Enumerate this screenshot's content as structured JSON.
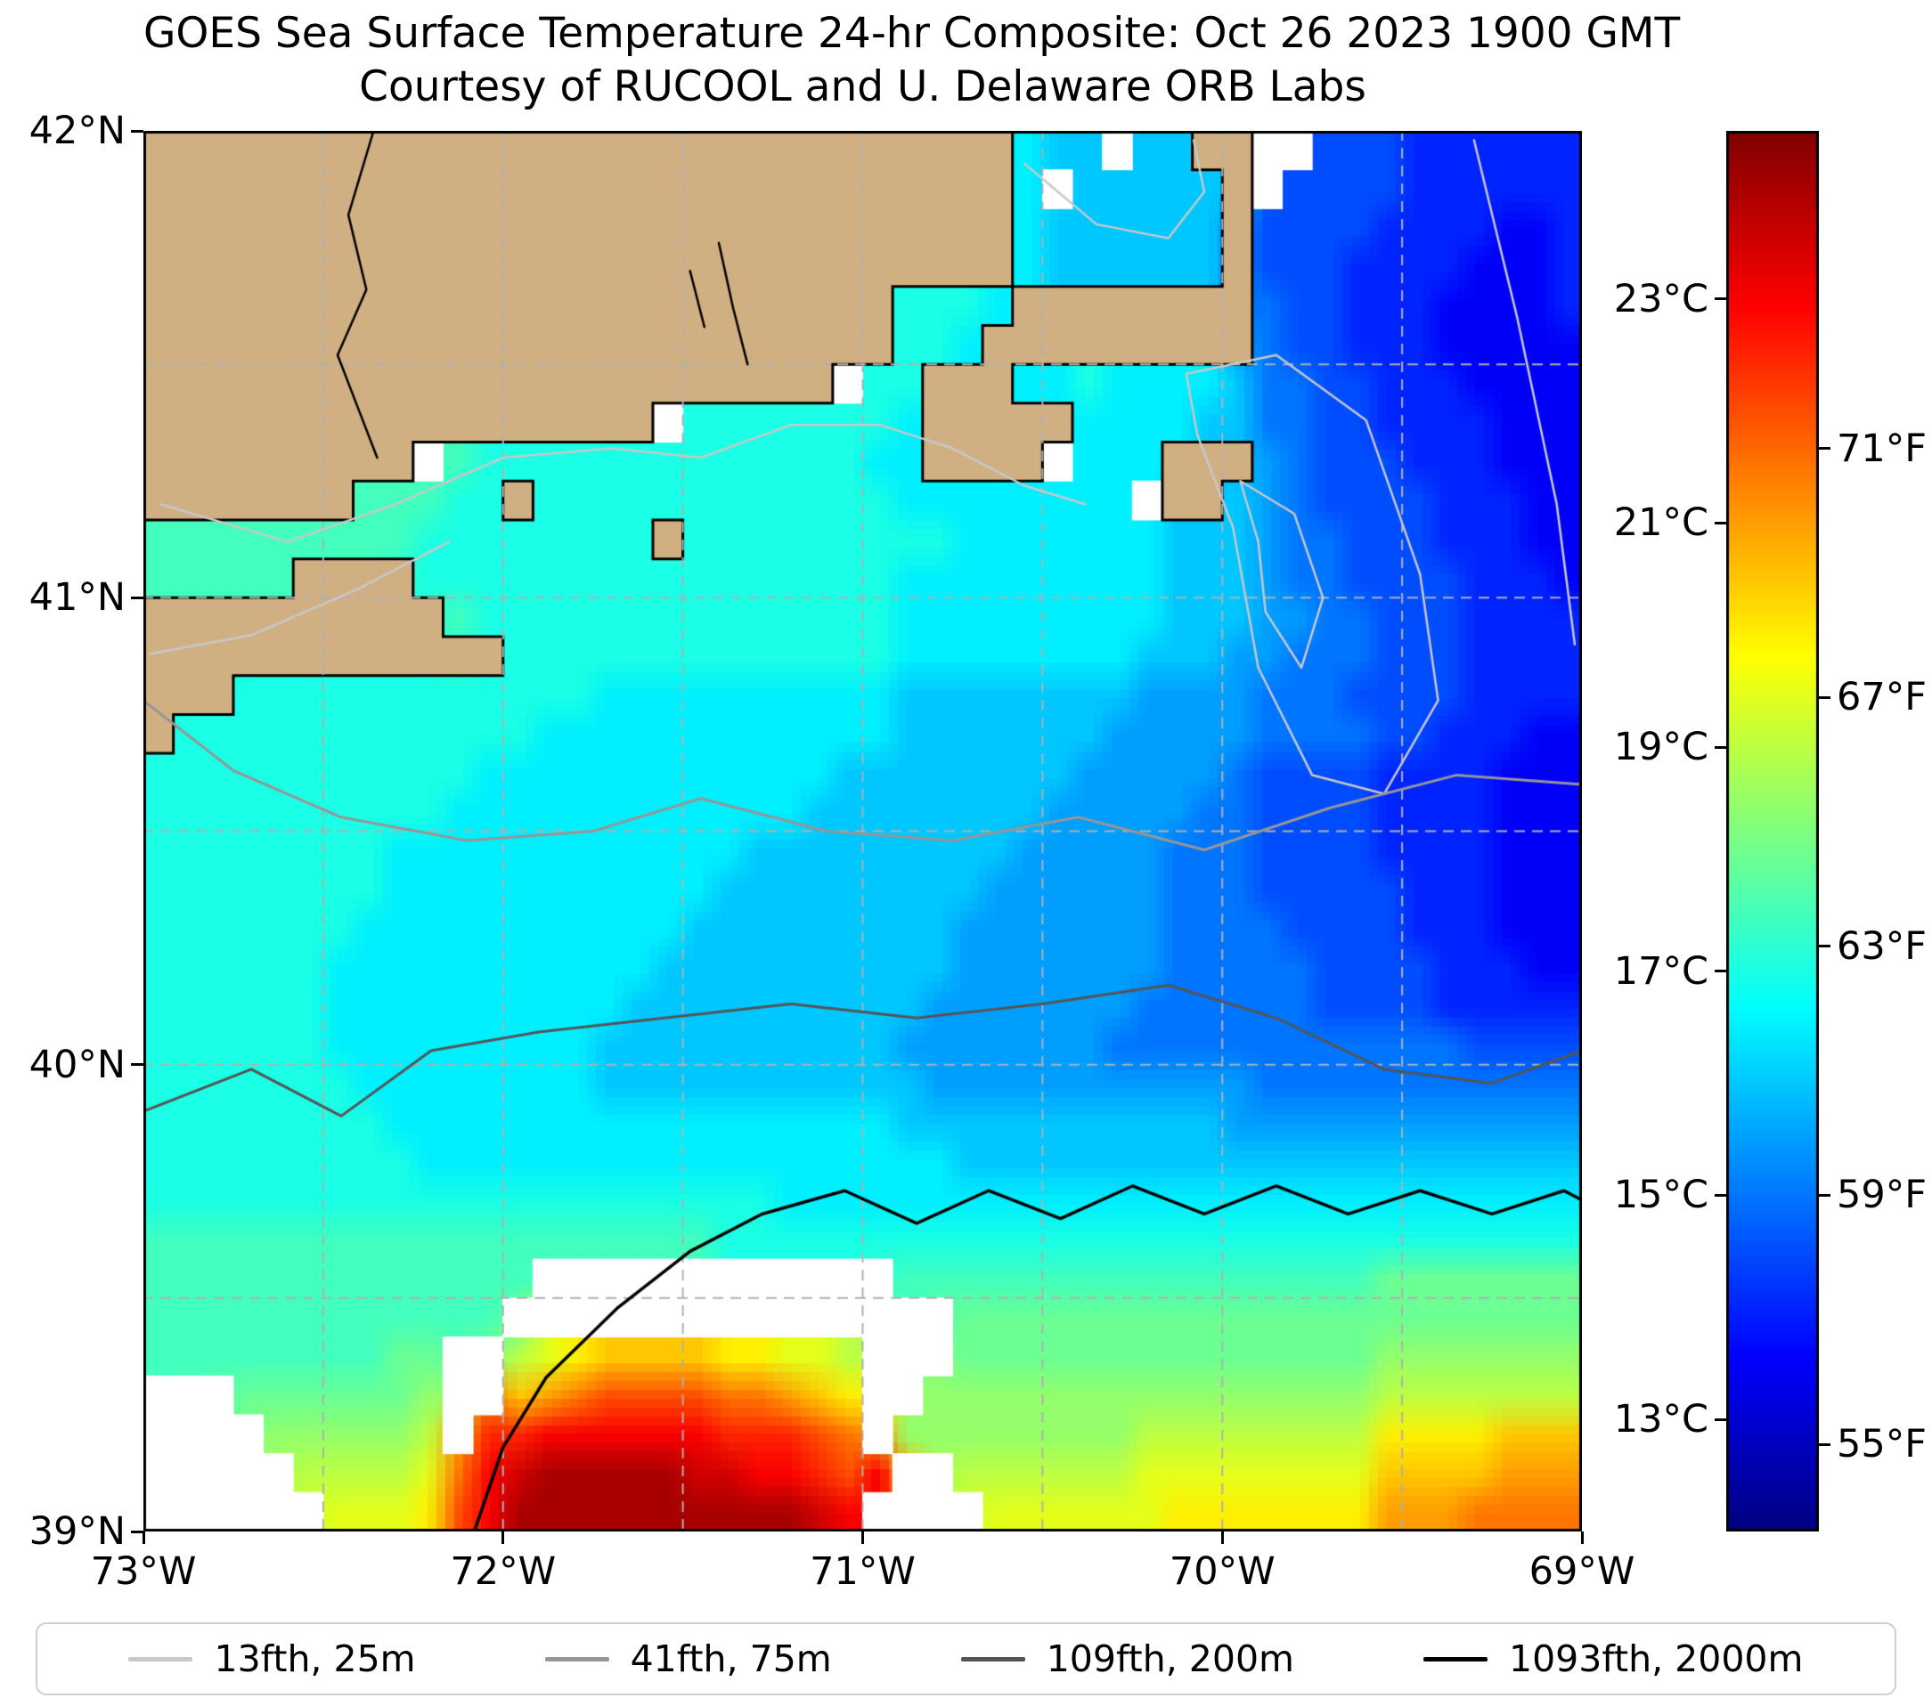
{
  "chart_data": {
    "type": "heatmap",
    "title": "GOES Sea Surface Temperature 24-hr Composite: Oct 26 2023 1900 GMT",
    "subtitle": "Courtesy of RUCOOL and U. Delaware ORB Labs",
    "x_axis": {
      "ticks": [
        {
          "lon": -73,
          "label": "73°W"
        },
        {
          "lon": -72,
          "label": "72°W"
        },
        {
          "lon": -71,
          "label": "71°W"
        },
        {
          "lon": -70,
          "label": "70°W"
        },
        {
          "lon": -69,
          "label": "69°W"
        }
      ]
    },
    "y_axis": {
      "ticks": [
        {
          "lat": 42,
          "label": "42°N"
        },
        {
          "lat": 41,
          "label": "41°N"
        },
        {
          "lat": 40,
          "label": "40°N"
        },
        {
          "lat": 39,
          "label": "39°N"
        }
      ]
    },
    "graticule": {
      "step_deg": 0.5,
      "color": "#b0b0b0"
    },
    "colorbar": {
      "colormap": "jet",
      "vmin_c": 12,
      "vmax_c": 24.5,
      "ticks_c": [
        {
          "c": 23,
          "label": "23°C"
        },
        {
          "c": 21,
          "label": "21°C"
        },
        {
          "c": 19,
          "label": "19°C"
        },
        {
          "c": 17,
          "label": "17°C"
        },
        {
          "c": 15,
          "label": "15°C"
        },
        {
          "c": 13,
          "label": "13°C"
        }
      ],
      "ticks_f": [
        {
          "f": 71,
          "label": "71°F"
        },
        {
          "f": 67,
          "label": "67°F"
        },
        {
          "f": 63,
          "label": "63°F"
        },
        {
          "f": 59,
          "label": "59°F"
        },
        {
          "f": 55,
          "label": "55°F"
        }
      ]
    },
    "land_color": "#d0b083",
    "no_data_color": "#ffffff",
    "sst_grid": {
      "cols": 48,
      "rows": 36,
      "lon_west": -73,
      "lon_east": -69,
      "lat_north": 42,
      "lat_south": 39,
      "encoding": "Each char is one cell. L=land, .=no-data/cloud, otherwise SST in °C = 12 + 0.5*index of char in 0123456789ABCDEFGHIJKMNPQ (so 0=12.0C, A=17.0C, Q=24.0C)",
      "rows_n_to_s": [
        "LLLLLLLLLLLLLLLLLLLLLLLLLLLLL988.88LL..555444444",
        "LLLLLLLLLLLLLLLLLLLLLLLLLLLLL9.88888L.5555444444",
        "LLLLLLLLLLLLLLLLLLLLLLLLLLLLL9888888L55554444334",
        "LLLLLLLLLLLLLLLLLLLLLLLLLLLLL9888888L55544443334",
        "LLLLLLLLLLLLLLLLLLLLLLLLLAAA9LLLLLLLL65544433334",
        "LLLLLLLLLLLLLLLLLLLLLLLLLAA9LLLLLLLLL65544433333",
        "LLLLLLLLLLLLLLLLLLLLLLL.AALLL99A9999866554443333",
        "LLLLLLLLLLLLLLLLL.AAAAAAA9LLLLL99998866554444333",
        "LLLLLLLLL.BAAAAAAAAAAAAA99LLLL.999LLL76555444333",
        "LLLLLLLBBBAALAAAAAAAAAAAA99999999.LL876555544433",
        "BBBBBBBBBAAAAAAAALAAAAAAAAA999999988876655544433",
        "BBBBBLLLLAAAAAAAAAAAAAAAA99999999988876655554443",
        "LLLLLLLLLLBAAAAAAAAAAAAAA99999999988877665554444",
        "LLLLLLLLLLLLAAAAAAAAAAAAA99999999888776665554444",
        "LLLAAAAAAAAAAAA999999999988888888777766655554444",
        "LAAAAAAAAAAAA99999999999988888887777766665544433",
        "AAAAAAAAAAA9999999999998888888877777655554444333",
        "AAAAAAAAAA99999999999988888888777776655554444333",
        "AAAAAAAA9999999999998888888887777766655554444333",
        "AAAAAAAA9999999999988888888877777766655555444333",
        "AAAAAAA99999999999888888888777777766665555444333",
        "AAAAAA999999999998888888888777777766666555544433",
        "AAAAAA999999999988888888887777777666666555544444",
        "AAAAAA999999999888888888877777776666666666665555",
        "AAAAAAA99999999888888888887777777777766666666666",
        "AAAAAAAA9999999999999999988888888888777777777777",
        "AAAAAAAAA999999999999999999888888888888888888888",
        "AAAAAAAAAAAAAAAAAAAAA999999999999999999999999999",
        "BBBBBBBBBBBBBBBBBBBAAAAAAAAAAAAAAAAAAAAAAAAAAAAA",
        "BBBBBBBBBBBBB............BBBBBBBBBBBBBBBBCCCCCCC",
        "BBBBBBBBBBBB...............CCCCCCCCCCCCCCCCCCCCC",
        "BBBBBBBBCC..EFGHHHHGGFFE...CCCCCCCCCCCCCCDDDDDDD",
        "...CCCCCCD..HIJKKKKJJIHG..DDDDDDDDDDDDDDDEEEEEEE",
        "....DDDDDE.MMNNNNNNMMMKJ.DDDDDDDDEEEEEEEEGGGGHHH",
        ".....EEEEFJNPQQQQQPPNNMKN..EEEEEEFFFFFFFFHHHHIII",
        "......FFFGKNQQQQQQQQQQPN....FFFFFFGGGGGGGIIIJJJJ"
      ]
    },
    "contours": [
      {
        "label": "13fth, 25m",
        "color": "#c8c8c8",
        "width": 2.5,
        "segments": [
          [
            [
              -72.95,
              41.2
            ],
            [
              -72.6,
              41.12
            ],
            [
              -72.3,
              41.2
            ],
            [
              -72.0,
              41.3
            ],
            [
              -71.7,
              41.32
            ],
            [
              -71.45,
              41.3
            ],
            [
              -71.2,
              41.37
            ],
            [
              -70.95,
              41.37
            ],
            [
              -70.75,
              41.32
            ],
            [
              -70.55,
              41.24
            ],
            [
              -70.38,
              41.2
            ]
          ],
          [
            [
              -70.1,
              41.48
            ],
            [
              -69.85,
              41.52
            ],
            [
              -69.6,
              41.38
            ],
            [
              -69.45,
              41.05
            ],
            [
              -69.4,
              40.78
            ],
            [
              -69.55,
              40.58
            ],
            [
              -69.75,
              40.62
            ],
            [
              -69.9,
              40.85
            ],
            [
              -69.97,
              41.15
            ],
            [
              -70.07,
              41.35
            ],
            [
              -70.1,
              41.48
            ]
          ],
          [
            [
              -69.95,
              41.25
            ],
            [
              -69.8,
              41.18
            ],
            [
              -69.72,
              41.0
            ],
            [
              -69.78,
              40.85
            ],
            [
              -69.88,
              40.97
            ],
            [
              -69.9,
              41.12
            ],
            [
              -69.95,
              41.25
            ]
          ],
          [
            [
              -69.3,
              41.98
            ],
            [
              -69.18,
              41.6
            ],
            [
              -69.07,
              41.2
            ],
            [
              -69.02,
              40.9
            ]
          ],
          [
            [
              -70.55,
              41.93
            ],
            [
              -70.35,
              41.8
            ],
            [
              -70.15,
              41.77
            ],
            [
              -70.05,
              41.87
            ],
            [
              -70.08,
              41.98
            ]
          ],
          [
            [
              -72.98,
              40.88
            ],
            [
              -72.7,
              40.92
            ],
            [
              -72.4,
              41.02
            ],
            [
              -72.15,
              41.12
            ]
          ]
        ]
      },
      {
        "label": "41fth, 75m",
        "color": "#969696",
        "width": 3,
        "segments": [
          [
            [
              -73,
              40.78
            ],
            [
              -72.75,
              40.63
            ],
            [
              -72.45,
              40.53
            ],
            [
              -72.1,
              40.48
            ],
            [
              -71.75,
              40.5
            ],
            [
              -71.45,
              40.57
            ],
            [
              -71.1,
              40.5
            ],
            [
              -70.75,
              40.48
            ],
            [
              -70.4,
              40.53
            ],
            [
              -70.05,
              40.46
            ],
            [
              -69.7,
              40.55
            ],
            [
              -69.35,
              40.62
            ],
            [
              -69.0,
              40.6
            ]
          ]
        ]
      },
      {
        "label": "109fth, 200m",
        "color": "#555555",
        "width": 3,
        "segments": [
          [
            [
              -73,
              39.9
            ],
            [
              -72.7,
              39.99
            ],
            [
              -72.45,
              39.89
            ],
            [
              -72.2,
              40.03
            ],
            [
              -71.9,
              40.07
            ],
            [
              -71.55,
              40.1
            ],
            [
              -71.2,
              40.13
            ],
            [
              -70.85,
              40.1
            ],
            [
              -70.5,
              40.13
            ],
            [
              -70.15,
              40.17
            ],
            [
              -69.85,
              40.1
            ],
            [
              -69.55,
              39.99
            ],
            [
              -69.25,
              39.96
            ],
            [
              -69.0,
              40.03
            ]
          ]
        ]
      },
      {
        "label": "1093fth, 2000m",
        "color": "#000000",
        "width": 3.5,
        "segments": [
          [
            [
              -72.08,
              39.0
            ],
            [
              -72.0,
              39.18
            ],
            [
              -71.88,
              39.33
            ],
            [
              -71.68,
              39.48
            ],
            [
              -71.48,
              39.6
            ],
            [
              -71.28,
              39.68
            ],
            [
              -71.05,
              39.73
            ],
            [
              -70.85,
              39.66
            ],
            [
              -70.65,
              39.73
            ],
            [
              -70.45,
              39.67
            ],
            [
              -70.25,
              39.74
            ],
            [
              -70.05,
              39.68
            ],
            [
              -69.85,
              39.74
            ],
            [
              -69.65,
              39.68
            ],
            [
              -69.45,
              39.73
            ],
            [
              -69.25,
              39.68
            ],
            [
              -69.05,
              39.73
            ],
            [
              -69.0,
              39.71
            ]
          ]
        ]
      }
    ],
    "coast_detail_lines": {
      "color": "#000000",
      "segments": [
        [
          [
            -72.36,
            42.0
          ],
          [
            -72.43,
            41.82
          ],
          [
            -72.38,
            41.66
          ],
          [
            -72.46,
            41.52
          ],
          [
            -72.4,
            41.4
          ],
          [
            -72.35,
            41.3
          ]
        ],
        [
          [
            -71.4,
            41.76
          ],
          [
            -71.36,
            41.62
          ],
          [
            -71.32,
            41.5
          ]
        ],
        [
          [
            -71.48,
            41.7
          ],
          [
            -71.44,
            41.58
          ]
        ]
      ]
    }
  }
}
